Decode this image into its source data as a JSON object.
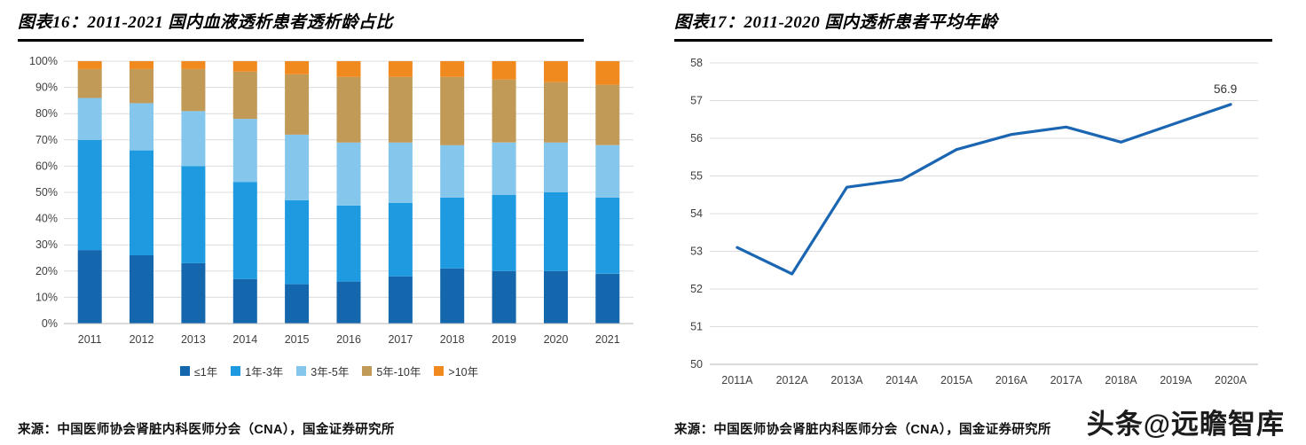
{
  "watermark": "头条@远瞻智库",
  "chart_data": [
    {
      "id": "hemodialysis-vintage-share",
      "type": "bar",
      "stacked": true,
      "title": "图表16：2011-2021 国内血液透析患者透析龄占比",
      "source": "来源：中国医师协会肾脏内科医师分会（CNA），国金证券研究所",
      "categories": [
        "2011",
        "2012",
        "2013",
        "2014",
        "2015",
        "2016",
        "2017",
        "2018",
        "2019",
        "2020",
        "2021"
      ],
      "series": [
        {
          "name": "≤1年",
          "color": "#1467AD",
          "values": [
            28,
            26,
            23,
            17,
            15,
            16,
            18,
            21,
            20,
            20,
            19
          ]
        },
        {
          "name": "1年-3年",
          "color": "#1E9BE0",
          "values": [
            42,
            40,
            37,
            37,
            32,
            29,
            28,
            27,
            29,
            30,
            29
          ]
        },
        {
          "name": "3年-5年",
          "color": "#85C6EC",
          "values": [
            16,
            18,
            21,
            24,
            25,
            24,
            23,
            20,
            20,
            19,
            20
          ]
        },
        {
          "name": "5年-10年",
          "color": "#C19A58",
          "values": [
            11,
            13,
            16,
            18,
            23,
            25,
            25,
            26,
            24,
            23,
            23
          ]
        },
        {
          "name": ">10年",
          "color": "#F08A1E",
          "values": [
            3,
            3,
            3,
            4,
            5,
            6,
            6,
            6,
            7,
            8,
            9
          ]
        }
      ],
      "ylim": [
        0,
        100
      ],
      "ytick_step": 10,
      "yticks": [
        "0%",
        "10%",
        "20%",
        "30%",
        "40%",
        "50%",
        "60%",
        "70%",
        "80%",
        "90%",
        "100%"
      ],
      "grid": true,
      "legend_position": "bottom"
    },
    {
      "id": "dialysis-average-age",
      "type": "line",
      "title": "图表17：2011-2020 国内透析患者平均年龄",
      "source": "来源：中国医师协会肾脏内科医师分会（CNA），国金证券研究所",
      "categories": [
        "2011A",
        "2012A",
        "2013A",
        "2014A",
        "2015A",
        "2016A",
        "2017A",
        "2018A",
        "2019A",
        "2020A"
      ],
      "values": [
        53.1,
        52.4,
        54.7,
        54.9,
        55.7,
        56.1,
        56.3,
        55.9,
        56.4,
        56.9
      ],
      "ylim": [
        50,
        58
      ],
      "ytick_step": 1,
      "yticks": [
        "50",
        "51",
        "52",
        "53",
        "54",
        "55",
        "56",
        "57",
        "58"
      ],
      "grid": true,
      "line_color": "#1B66B2",
      "end_label": "56.9",
      "legend_position": "none"
    }
  ]
}
